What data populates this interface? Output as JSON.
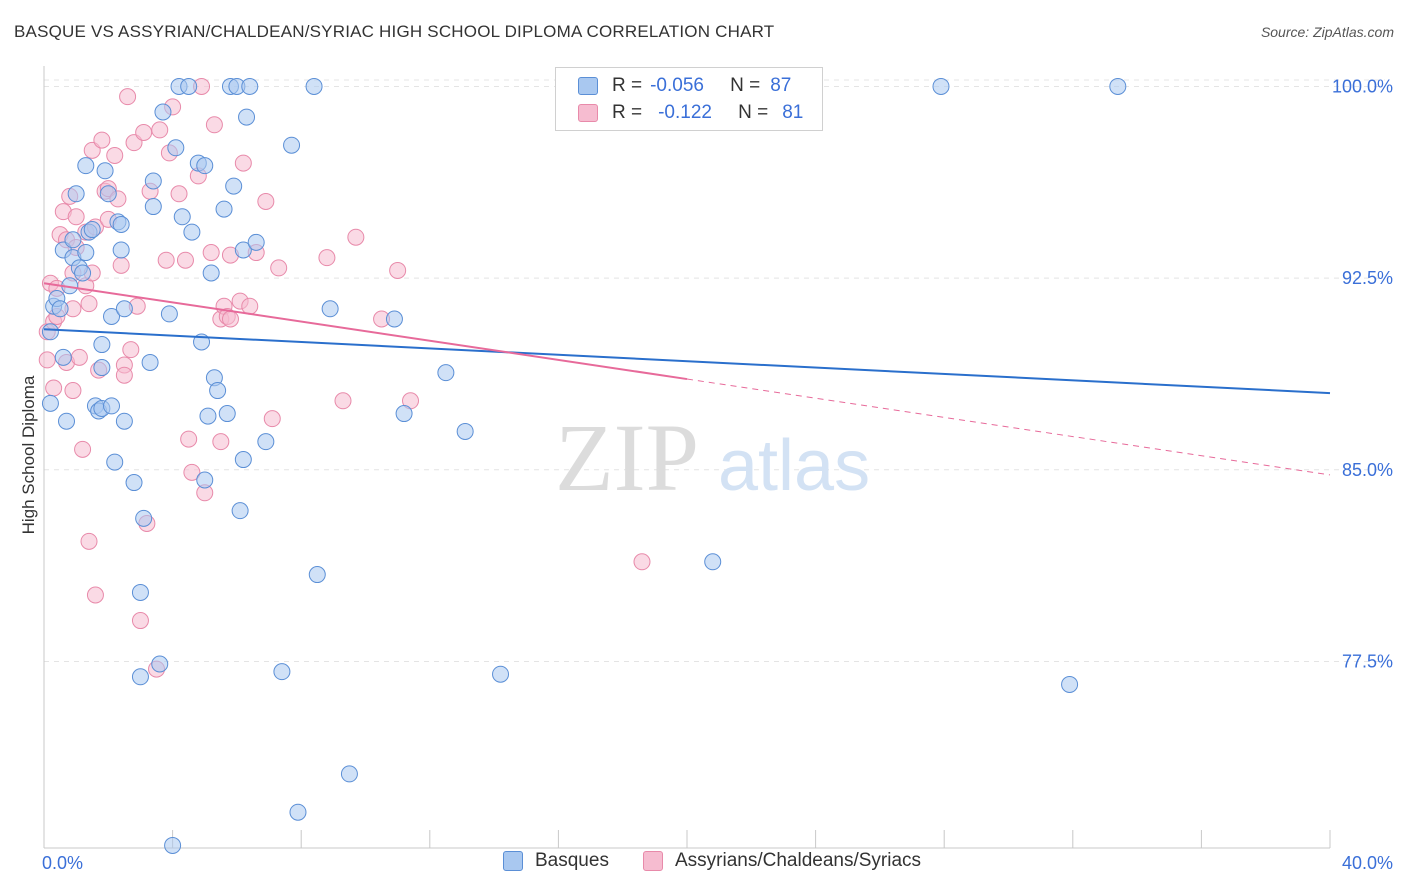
{
  "title": "BASQUE VS ASSYRIAN/CHALDEAN/SYRIAC HIGH SCHOOL DIPLOMA CORRELATION CHART",
  "source": "Source: ZipAtlas.com",
  "watermark": {
    "zip": "ZIP",
    "atlas": "atlas"
  },
  "legend": {
    "rows": [
      {
        "r_label": "R =",
        "r_value": "-0.056",
        "n_label": "N =",
        "n_value": "87"
      },
      {
        "r_label": "R =",
        "r_value": "-0.122",
        "n_label": "N =",
        "n_value": "81"
      }
    ]
  },
  "colors": {
    "blue_fill": "#a9c8f0",
    "blue_stroke": "#5b8fd6",
    "blue_line": "#2a6fcc",
    "pink_fill": "#f6bcd0",
    "pink_stroke": "#e88aaa",
    "pink_line": "#e76a9a",
    "tick_label": "#3a6fd8",
    "grid": "#e4e4e4"
  },
  "chart_data": {
    "type": "scatter",
    "title": "BASQUE VS ASSYRIAN/CHALDEAN/SYRIAC HIGH SCHOOL DIPLOMA CORRELATION CHART",
    "xlabel": "",
    "ylabel": "High School Diploma",
    "xlim": [
      0,
      40
    ],
    "ylim": [
      70.2,
      100.8
    ],
    "x_tick_labels": [
      "0.0%",
      "40.0%"
    ],
    "y_ticks": [
      77.5,
      85.0,
      92.5,
      100.0
    ],
    "y_tick_labels": [
      "77.5%",
      "85.0%",
      "92.5%",
      "100.0%"
    ],
    "grid": "horizontal dashed",
    "legend_placement": "top-center",
    "series": [
      {
        "name": "Basques",
        "color": "#a9c8f0",
        "trend": {
          "x": [
            0,
            40
          ],
          "y": [
            90.5,
            88.0
          ]
        },
        "points": [
          [
            0.2,
            87.6
          ],
          [
            0.2,
            90.4
          ],
          [
            0.3,
            91.4
          ],
          [
            0.4,
            91.7
          ],
          [
            0.5,
            91.3
          ],
          [
            0.6,
            89.4
          ],
          [
            0.6,
            93.6
          ],
          [
            0.7,
            86.9
          ],
          [
            0.8,
            92.2
          ],
          [
            0.9,
            94.0
          ],
          [
            0.9,
            93.3
          ],
          [
            1.0,
            95.8
          ],
          [
            1.1,
            92.9
          ],
          [
            1.2,
            92.7
          ],
          [
            1.3,
            93.5
          ],
          [
            1.3,
            96.9
          ],
          [
            1.4,
            94.3
          ],
          [
            1.5,
            94.4
          ],
          [
            1.6,
            87.5
          ],
          [
            1.7,
            87.3
          ],
          [
            1.8,
            89.0
          ],
          [
            1.8,
            87.4
          ],
          [
            1.8,
            89.9
          ],
          [
            1.9,
            96.7
          ],
          [
            2.0,
            95.8
          ],
          [
            2.1,
            91.0
          ],
          [
            2.1,
            87.5
          ],
          [
            2.2,
            85.3
          ],
          [
            2.3,
            94.7
          ],
          [
            2.4,
            93.6
          ],
          [
            2.4,
            94.6
          ],
          [
            2.5,
            91.3
          ],
          [
            2.5,
            86.9
          ],
          [
            2.8,
            84.5
          ],
          [
            3.0,
            80.2
          ],
          [
            3.0,
            76.9
          ],
          [
            3.1,
            83.1
          ],
          [
            3.3,
            89.2
          ],
          [
            3.4,
            96.3
          ],
          [
            3.4,
            95.3
          ],
          [
            3.6,
            77.4
          ],
          [
            3.7,
            99.0
          ],
          [
            3.9,
            91.1
          ],
          [
            4.0,
            70.3
          ],
          [
            4.1,
            97.6
          ],
          [
            4.2,
            100.0
          ],
          [
            4.3,
            94.9
          ],
          [
            4.5,
            100.0
          ],
          [
            4.6,
            94.3
          ],
          [
            4.8,
            97.0
          ],
          [
            4.9,
            90.0
          ],
          [
            5.0,
            84.6
          ],
          [
            5.0,
            96.9
          ],
          [
            5.1,
            87.1
          ],
          [
            5.2,
            92.7
          ],
          [
            5.3,
            88.6
          ],
          [
            5.4,
            88.1
          ],
          [
            5.6,
            95.2
          ],
          [
            5.7,
            87.2
          ],
          [
            5.8,
            100.0
          ],
          [
            5.9,
            96.1
          ],
          [
            6.0,
            100.0
          ],
          [
            6.1,
            83.4
          ],
          [
            6.2,
            85.4
          ],
          [
            6.3,
            98.8
          ],
          [
            6.4,
            100.0
          ],
          [
            6.2,
            93.6
          ],
          [
            6.6,
            93.9
          ],
          [
            6.9,
            86.1
          ],
          [
            7.4,
            77.1
          ],
          [
            7.7,
            97.7
          ],
          [
            7.9,
            71.6
          ],
          [
            8.4,
            100.0
          ],
          [
            8.5,
            80.9
          ],
          [
            8.9,
            91.3
          ],
          [
            9.5,
            73.1
          ],
          [
            10.9,
            90.9
          ],
          [
            11.2,
            87.2
          ],
          [
            12.5,
            88.8
          ],
          [
            13.1,
            86.5
          ],
          [
            14.2,
            77.0
          ],
          [
            20.8,
            81.4
          ],
          [
            27.9,
            100.0
          ],
          [
            31.9,
            76.6
          ],
          [
            33.4,
            100.0
          ]
        ]
      },
      {
        "name": "Assyrians/Chaldeans/Syriacs",
        "color": "#f6bcd0",
        "trend": {
          "x": [
            0,
            40
          ],
          "y": [
            92.3,
            84.8
          ],
          "solid_until_x": 20.0
        },
        "points": [
          [
            0.1,
            90.4
          ],
          [
            0.1,
            89.3
          ],
          [
            0.2,
            92.3
          ],
          [
            0.3,
            88.2
          ],
          [
            0.3,
            90.8
          ],
          [
            0.4,
            91.0
          ],
          [
            0.4,
            92.1
          ],
          [
            0.5,
            94.2
          ],
          [
            0.6,
            95.1
          ],
          [
            0.7,
            89.2
          ],
          [
            0.7,
            94.0
          ],
          [
            0.8,
            95.7
          ],
          [
            0.9,
            92.7
          ],
          [
            0.9,
            91.3
          ],
          [
            0.9,
            88.1
          ],
          [
            1.0,
            93.7
          ],
          [
            1.0,
            94.9
          ],
          [
            1.1,
            89.4
          ],
          [
            1.2,
            85.8
          ],
          [
            1.3,
            94.3
          ],
          [
            1.3,
            92.2
          ],
          [
            1.4,
            82.2
          ],
          [
            1.4,
            91.5
          ],
          [
            1.5,
            92.7
          ],
          [
            1.5,
            97.5
          ],
          [
            1.6,
            94.5
          ],
          [
            1.6,
            80.1
          ],
          [
            1.7,
            88.9
          ],
          [
            1.8,
            97.9
          ],
          [
            1.9,
            95.9
          ],
          [
            2.0,
            94.8
          ],
          [
            2.0,
            96.0
          ],
          [
            2.2,
            97.3
          ],
          [
            2.3,
            95.6
          ],
          [
            2.4,
            93.0
          ],
          [
            2.5,
            89.1
          ],
          [
            2.5,
            88.7
          ],
          [
            2.6,
            99.6
          ],
          [
            2.7,
            89.7
          ],
          [
            2.8,
            97.8
          ],
          [
            2.9,
            91.4
          ],
          [
            3.0,
            79.1
          ],
          [
            3.1,
            98.2
          ],
          [
            3.2,
            82.9
          ],
          [
            3.3,
            95.9
          ],
          [
            3.5,
            77.2
          ],
          [
            3.6,
            98.3
          ],
          [
            3.8,
            93.2
          ],
          [
            3.9,
            97.4
          ],
          [
            4.0,
            99.2
          ],
          [
            4.2,
            95.8
          ],
          [
            4.4,
            93.2
          ],
          [
            4.5,
            86.2
          ],
          [
            4.6,
            84.9
          ],
          [
            4.8,
            96.5
          ],
          [
            4.9,
            100.0
          ],
          [
            5.0,
            84.1
          ],
          [
            5.2,
            93.5
          ],
          [
            5.3,
            98.5
          ],
          [
            5.5,
            86.1
          ],
          [
            5.5,
            90.9
          ],
          [
            5.6,
            91.4
          ],
          [
            5.7,
            91.0
          ],
          [
            5.8,
            90.9
          ],
          [
            5.8,
            93.4
          ],
          [
            6.1,
            91.6
          ],
          [
            6.2,
            97.0
          ],
          [
            6.4,
            91.4
          ],
          [
            6.6,
            93.5
          ],
          [
            6.9,
            95.5
          ],
          [
            7.1,
            87.0
          ],
          [
            7.3,
            92.9
          ],
          [
            8.8,
            93.3
          ],
          [
            9.3,
            87.7
          ],
          [
            9.7,
            94.1
          ],
          [
            10.5,
            90.9
          ],
          [
            11.0,
            92.8
          ],
          [
            11.4,
            87.7
          ],
          [
            18.6,
            81.4
          ]
        ]
      }
    ]
  },
  "bottom_legend": {
    "items": [
      {
        "label": "Basques"
      },
      {
        "label": "Assyrians/Chaldeans/Syriacs"
      }
    ]
  }
}
